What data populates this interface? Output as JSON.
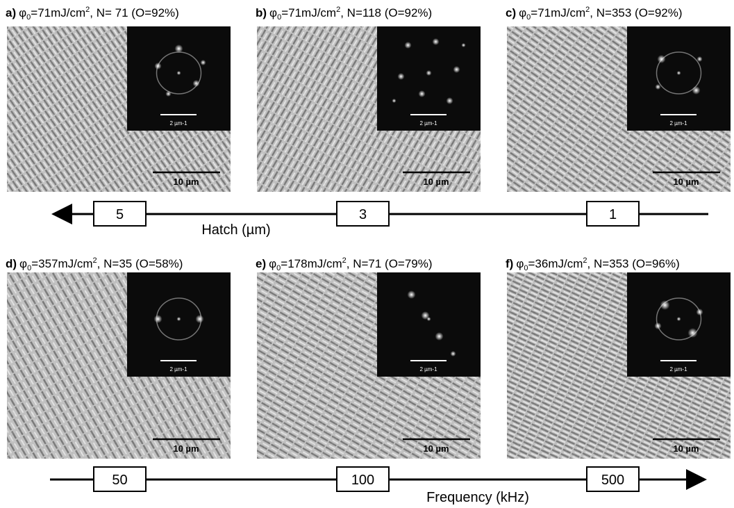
{
  "panels": [
    {
      "letter": "a)",
      "phi": "φ",
      "sub": "0",
      "fluence": "=71mJ/cm",
      "sup": "2",
      "rest": ", N= 71 (O=92%)",
      "scale": "10 µm",
      "inset_scale": "2 µm-1"
    },
    {
      "letter": "b)",
      "phi": "φ",
      "sub": "0",
      "fluence": "=71mJ/cm",
      "sup": "2",
      "rest": ", N=118 (O=92%)",
      "scale": "10 µm",
      "inset_scale": "2 µm-1"
    },
    {
      "letter": "c)",
      "phi": "φ",
      "sub": "0",
      "fluence": "=71mJ/cm",
      "sup": "2",
      "rest": ", N=353 (O=92%)",
      "scale": "10 µm",
      "inset_scale": "2 µm-1"
    },
    {
      "letter": "d)",
      "phi": "φ",
      "sub": "0",
      "fluence": "=357mJ/cm",
      "sup": "2",
      "rest": ", N=35 (O=58%)",
      "scale": "10 µm",
      "inset_scale": "2 µm-1"
    },
    {
      "letter": "e)",
      "phi": "φ",
      "sub": "0",
      "fluence": "=178mJ/cm",
      "sup": "2",
      "rest": ", N=71 (O=79%)",
      "scale": "10 µm",
      "inset_scale": "2 µm-1"
    },
    {
      "letter": "f)",
      "phi": "φ",
      "sub": "0",
      "fluence": "=36mJ/cm",
      "sup": "2",
      "rest": ", N=353 (O=96%)",
      "scale": "10 µm",
      "inset_scale": "2 µm-1"
    }
  ],
  "hatch_axis": {
    "label": "Hatch (µm)",
    "boxes": [
      "5",
      "3",
      "1"
    ]
  },
  "frequency_axis": {
    "label": "Frequency (kHz)",
    "boxes": [
      "50",
      "100",
      "500"
    ]
  }
}
